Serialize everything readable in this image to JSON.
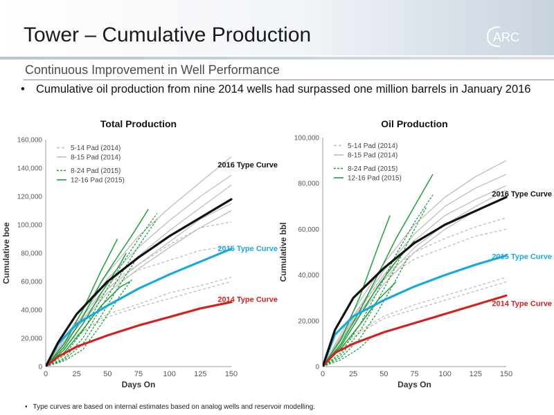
{
  "header": {
    "title": "Tower – Cumulative Production",
    "logo_text": "ARC"
  },
  "subtitle": "Continuous Improvement in Well Performance",
  "bullet": "Cumulative oil production from nine 2014 wells had surpassed one million barrels in January 2016",
  "footnote": "Type curves are based on internal estimates based on analog wells and reservoir modelling.",
  "colors": {
    "accent_blue": "#1aa9dd",
    "red": "#d42020",
    "green": "#1f9e3a",
    "grey": "#bdbdbd",
    "black": "#111111"
  },
  "chart_data": [
    {
      "type": "line",
      "title": "Total Production",
      "xlabel": "Days On",
      "ylabel": "Cumulative boe",
      "xlim": [
        0,
        150
      ],
      "ylim": [
        0,
        160000
      ],
      "xticks": [
        "0",
        "25",
        "50",
        "75",
        "100",
        "125",
        "150"
      ],
      "yticks": [
        "0",
        "20,000",
        "40,000",
        "60,000",
        "80,000",
        "100,000",
        "120,000",
        "140,000",
        "160,000"
      ],
      "legend": [
        {
          "label": "5-14 Pad (2014)",
          "style": "grey-dashed"
        },
        {
          "label": "8-15 Pad (2014)",
          "style": "grey-solid"
        },
        {
          "label": "8-24 Pad (2015)",
          "style": "green-dashed"
        },
        {
          "label": "12-16 Pad (2015)",
          "style": "green-solid"
        }
      ],
      "type_curves": [
        {
          "name": "2016 Type Curve",
          "color": "#111111",
          "x": [
            0,
            10,
            25,
            50,
            75,
            100,
            125,
            150
          ],
          "y": [
            0,
            17000,
            37000,
            60000,
            77000,
            92000,
            105000,
            118000
          ]
        },
        {
          "name": "2015 Type Curve",
          "color": "#1aa9dd",
          "x": [
            0,
            10,
            25,
            50,
            75,
            100,
            125,
            150
          ],
          "y": [
            0,
            16000,
            30000,
            43000,
            55000,
            65000,
            74000,
            83000
          ]
        },
        {
          "name": "2014 Type Curve",
          "color": "#d42020",
          "x": [
            0,
            10,
            25,
            50,
            75,
            100,
            125,
            150
          ],
          "y": [
            0,
            7000,
            14000,
            22000,
            29000,
            35000,
            41000,
            45500
          ]
        }
      ],
      "series": [
        {
          "group": "5-14",
          "x": [
            0,
            25,
            50,
            75,
            100,
            125,
            150
          ],
          "y": [
            0,
            22000,
            37000,
            44000,
            52000,
            57000,
            63000
          ]
        },
        {
          "group": "5-14",
          "x": [
            0,
            25,
            50,
            75,
            100,
            125,
            150
          ],
          "y": [
            0,
            22000,
            35000,
            42000,
            48000,
            54000,
            60000
          ]
        },
        {
          "group": "5-14",
          "x": [
            0,
            25,
            50,
            75,
            100,
            125,
            150
          ],
          "y": [
            0,
            28000,
            55000,
            68000,
            75000,
            82000,
            85000
          ]
        },
        {
          "group": "5-14",
          "x": [
            0,
            25,
            50,
            75,
            100,
            125,
            150
          ],
          "y": [
            0,
            30000,
            58000,
            72000,
            86000,
            98000,
            102000
          ]
        },
        {
          "group": "8-15",
          "x": [
            0,
            25,
            50,
            75,
            100,
            125,
            150
          ],
          "y": [
            0,
            33000,
            66000,
            92000,
            112000,
            130000,
            148000
          ]
        },
        {
          "group": "8-15",
          "x": [
            0,
            25,
            50,
            75,
            100,
            125,
            150
          ],
          "y": [
            0,
            30000,
            62000,
            84000,
            103000,
            120000,
            135000
          ]
        },
        {
          "group": "8-15",
          "x": [
            0,
            25,
            50,
            75,
            100,
            125,
            150
          ],
          "y": [
            0,
            30000,
            58000,
            78000,
            96000,
            112000,
            128000
          ]
        },
        {
          "group": "8-15",
          "x": [
            0,
            25,
            50,
            75,
            100,
            125,
            150
          ],
          "y": [
            0,
            28000,
            55000,
            72000,
            88000,
            104000,
            115000
          ]
        },
        {
          "group": "8-15",
          "x": [
            0,
            25,
            50,
            75,
            100,
            125,
            150
          ],
          "y": [
            0,
            27000,
            52000,
            69000,
            84000,
            98000,
            110000
          ]
        },
        {
          "group": "8-24",
          "x": [
            0,
            15,
            30,
            45,
            60,
            75,
            90
          ],
          "y": [
            0,
            8000,
            25000,
            48000,
            70000,
            90000,
            108000
          ]
        },
        {
          "group": "8-24",
          "x": [
            0,
            15,
            30,
            45,
            60,
            75,
            90
          ],
          "y": [
            0,
            6000,
            20000,
            42000,
            64000,
            85000,
            104000
          ]
        },
        {
          "group": "8-24",
          "x": [
            0,
            15,
            30,
            45,
            60,
            75
          ],
          "y": [
            0,
            5000,
            16000,
            36000,
            58000,
            78000
          ]
        },
        {
          "group": "8-24",
          "x": [
            0,
            15,
            30,
            45,
            60,
            70
          ],
          "y": [
            0,
            4000,
            12000,
            30000,
            50000,
            62000
          ]
        },
        {
          "group": "12-16",
          "x": [
            0,
            15,
            30,
            45,
            60,
            70,
            83
          ],
          "y": [
            0,
            14000,
            35000,
            60000,
            80000,
            93000,
            111000
          ]
        },
        {
          "group": "12-16",
          "x": [
            0,
            15,
            30,
            45,
            58
          ],
          "y": [
            0,
            16000,
            40000,
            68000,
            90000
          ]
        },
        {
          "group": "12-16",
          "x": [
            0,
            15,
            30,
            45,
            60,
            65
          ],
          "y": [
            0,
            12000,
            30000,
            52000,
            72000,
            80000
          ]
        },
        {
          "group": "12-16",
          "x": [
            0,
            15,
            30,
            45,
            60,
            68
          ],
          "y": [
            0,
            10000,
            26000,
            43000,
            56000,
            60000
          ]
        }
      ]
    },
    {
      "type": "line",
      "title": "Oil Production",
      "xlabel": "Days On",
      "ylabel": "Cumulative bbl",
      "xlim": [
        0,
        150
      ],
      "ylim": [
        0,
        100000
      ],
      "xticks": [
        "0",
        "25",
        "50",
        "75",
        "100",
        "125",
        "150"
      ],
      "yticks": [
        "0",
        "20,000",
        "40,000",
        "60,000",
        "80,000",
        "100,000"
      ],
      "legend": [
        {
          "label": "5-14 Pad (2014)",
          "style": "grey-dashed"
        },
        {
          "label": "8-15 Pad (2014)",
          "style": "grey-solid"
        },
        {
          "label": "8-24 Pad (2015)",
          "style": "green-dashed"
        },
        {
          "label": "12-16 Pad (2015)",
          "style": "green-solid"
        }
      ],
      "type_curves": [
        {
          "name": "2016 Type Curve",
          "color": "#111111",
          "x": [
            0,
            10,
            25,
            50,
            75,
            100,
            125,
            150
          ],
          "y": [
            0,
            16000,
            30000,
            43000,
            54000,
            62000,
            68000,
            74000
          ]
        },
        {
          "name": "2015 Type Curve",
          "color": "#1aa9dd",
          "x": [
            0,
            10,
            25,
            50,
            75,
            100,
            125,
            150
          ],
          "y": [
            0,
            14000,
            22000,
            29000,
            35000,
            40000,
            44500,
            48500
          ]
        },
        {
          "name": "2014 Type Curve",
          "color": "#d42020",
          "x": [
            0,
            10,
            25,
            50,
            75,
            100,
            125,
            150
          ],
          "y": [
            0,
            6000,
            10000,
            15000,
            19000,
            23000,
            27000,
            31000
          ]
        }
      ],
      "series": [
        {
          "group": "5-14",
          "x": [
            0,
            25,
            50,
            75,
            100,
            125,
            150
          ],
          "y": [
            0,
            14000,
            22000,
            27000,
            31000,
            35000,
            39000
          ]
        },
        {
          "group": "5-14",
          "x": [
            0,
            25,
            50,
            75,
            100,
            125,
            150
          ],
          "y": [
            0,
            13000,
            21000,
            25000,
            29000,
            33000,
            37000
          ]
        },
        {
          "group": "5-14",
          "x": [
            0,
            25,
            50,
            75,
            100,
            125,
            150
          ],
          "y": [
            0,
            20000,
            38000,
            47000,
            52000,
            57000,
            60000
          ]
        },
        {
          "group": "5-14",
          "x": [
            0,
            25,
            50,
            75,
            100,
            125,
            150
          ],
          "y": [
            0,
            22000,
            40000,
            50000,
            56000,
            61000,
            65000
          ]
        },
        {
          "group": "8-15",
          "x": [
            0,
            25,
            50,
            75,
            100,
            125,
            150
          ],
          "y": [
            0,
            24000,
            45000,
            62000,
            74000,
            83000,
            90000
          ]
        },
        {
          "group": "8-15",
          "x": [
            0,
            25,
            50,
            75,
            100,
            125,
            150
          ],
          "y": [
            0,
            22000,
            42000,
            58000,
            70000,
            78000,
            84000
          ]
        },
        {
          "group": "8-15",
          "x": [
            0,
            25,
            50,
            75,
            100,
            125,
            150
          ],
          "y": [
            0,
            21000,
            40000,
            55000,
            66000,
            73000,
            79000
          ]
        },
        {
          "group": "8-15",
          "x": [
            0,
            25,
            50,
            75,
            100,
            125,
            150
          ],
          "y": [
            0,
            20000,
            38000,
            52000,
            62000,
            70000,
            77000
          ]
        },
        {
          "group": "8-15",
          "x": [
            0,
            25,
            50,
            75,
            100,
            125,
            150
          ],
          "y": [
            0,
            19000,
            36000,
            50000,
            60000,
            68000,
            74000
          ]
        },
        {
          "group": "8-24",
          "x": [
            0,
            15,
            30,
            45,
            60,
            75,
            90
          ],
          "y": [
            0,
            6000,
            18000,
            33000,
            49000,
            63000,
            75000
          ]
        },
        {
          "group": "8-24",
          "x": [
            0,
            15,
            30,
            45,
            60,
            75,
            85
          ],
          "y": [
            0,
            5000,
            15000,
            29000,
            44000,
            60000,
            70000
          ]
        },
        {
          "group": "8-24",
          "x": [
            0,
            15,
            30,
            45,
            60,
            70
          ],
          "y": [
            0,
            4000,
            12000,
            24000,
            38000,
            48000
          ]
        },
        {
          "group": "8-24",
          "x": [
            0,
            15,
            30,
            40
          ],
          "y": [
            0,
            3000,
            8000,
            13000
          ]
        },
        {
          "group": "12-16",
          "x": [
            0,
            15,
            30,
            45,
            60,
            75,
            90
          ],
          "y": [
            0,
            10000,
            24000,
            40000,
            56000,
            70000,
            84000
          ]
        },
        {
          "group": "12-16",
          "x": [
            0,
            15,
            30,
            45,
            55
          ],
          "y": [
            0,
            12000,
            30000,
            52000,
            66000
          ]
        },
        {
          "group": "12-16",
          "x": [
            0,
            15,
            30,
            45,
            60,
            75
          ],
          "y": [
            0,
            9000,
            22000,
            35000,
            46000,
            55000
          ]
        },
        {
          "group": "12-16",
          "x": [
            0,
            15,
            30,
            45,
            60
          ],
          "y": [
            0,
            8000,
            18000,
            29000,
            37000
          ]
        }
      ]
    }
  ]
}
